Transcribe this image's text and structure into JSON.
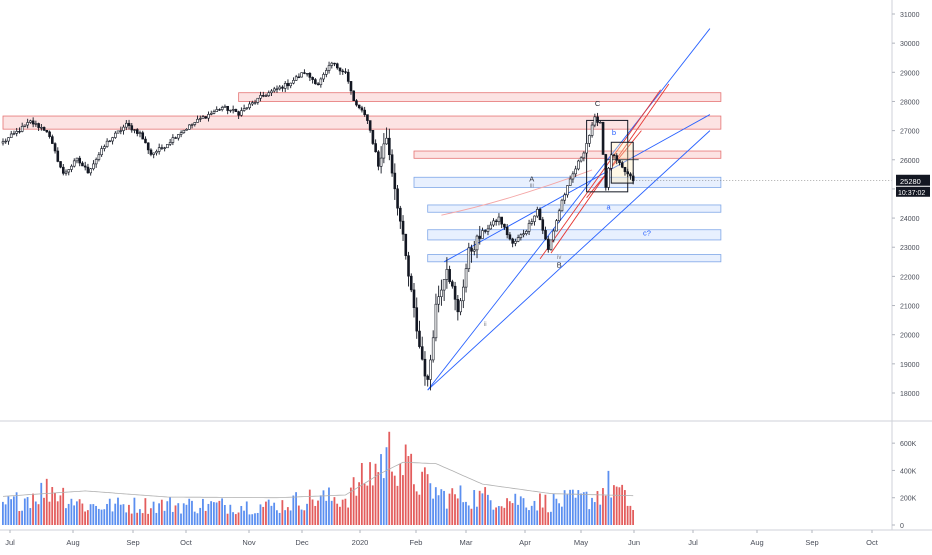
{
  "chart_data": {
    "type": "candlestick",
    "price_axis": {
      "ticks": [
        "31000",
        "30000",
        "29000",
        "28000",
        "27000",
        "26000",
        "25000",
        "24000",
        "23000",
        "22000",
        "21000",
        "20000",
        "19000",
        "18000"
      ],
      "range": [
        17200,
        31500
      ]
    },
    "last_price": {
      "value": "25280",
      "countdown": "10:37:02"
    },
    "volume_axis": {
      "ticks": [
        "600K",
        "400K",
        "200K",
        "0"
      ],
      "range": [
        0,
        760000
      ]
    },
    "time_axis": {
      "labels": [
        "Jul",
        "Aug",
        "Sep",
        "Oct",
        "Nov",
        "Dec",
        "2020",
        "Feb",
        "Mar",
        "Apr",
        "May",
        "Jun",
        "Jul",
        "Aug",
        "Sep",
        "Oct"
      ]
    },
    "anchors": [
      {
        "d": 0,
        "p": 26600
      },
      {
        "d": 10,
        "p": 27300
      },
      {
        "d": 16,
        "p": 27000
      },
      {
        "d": 22,
        "p": 25500
      },
      {
        "d": 27,
        "p": 26000
      },
      {
        "d": 31,
        "p": 25600
      },
      {
        "d": 38,
        "p": 26600
      },
      {
        "d": 45,
        "p": 27200
      },
      {
        "d": 50,
        "p": 26900
      },
      {
        "d": 54,
        "p": 26200
      },
      {
        "d": 58,
        "p": 26400
      },
      {
        "d": 64,
        "p": 26900
      },
      {
        "d": 72,
        "p": 27400
      },
      {
        "d": 80,
        "p": 27800
      },
      {
        "d": 86,
        "p": 27600
      },
      {
        "d": 95,
        "p": 28200
      },
      {
        "d": 104,
        "p": 28600
      },
      {
        "d": 110,
        "p": 29000
      },
      {
        "d": 115,
        "p": 28600
      },
      {
        "d": 120,
        "p": 29300
      },
      {
        "d": 125,
        "p": 29000
      },
      {
        "d": 128,
        "p": 28000
      },
      {
        "d": 133,
        "p": 27400
      },
      {
        "d": 137,
        "p": 25800
      },
      {
        "d": 140,
        "p": 26800
      },
      {
        "d": 144,
        "p": 24500
      },
      {
        "d": 148,
        "p": 22000
      },
      {
        "d": 152,
        "p": 19600
      },
      {
        "d": 155,
        "p": 18300
      },
      {
        "d": 158,
        "p": 21000
      },
      {
        "d": 162,
        "p": 22400
      },
      {
        "d": 166,
        "p": 20700
      },
      {
        "d": 170,
        "p": 22800
      },
      {
        "d": 175,
        "p": 23500
      },
      {
        "d": 181,
        "p": 24000
      },
      {
        "d": 186,
        "p": 23100
      },
      {
        "d": 191,
        "p": 23600
      },
      {
        "d": 195,
        "p": 24300
      },
      {
        "d": 199,
        "p": 22900
      },
      {
        "d": 204,
        "p": 24600
      },
      {
        "d": 208,
        "p": 25500
      },
      {
        "d": 212,
        "p": 26300
      },
      {
        "d": 216,
        "p": 27400
      },
      {
        "d": 218,
        "p": 27300
      },
      {
        "d": 220,
        "p": 25100
      },
      {
        "d": 222,
        "p": 26200
      },
      {
        "d": 226,
        "p": 25700
      },
      {
        "d": 230,
        "p": 25280
      }
    ],
    "volume_envelope": [
      {
        "d": 0,
        "v": 170000
      },
      {
        "d": 18,
        "v": 330000
      },
      {
        "d": 30,
        "v": 170000
      },
      {
        "d": 60,
        "v": 180000
      },
      {
        "d": 100,
        "v": 170000
      },
      {
        "d": 110,
        "v": 230000
      },
      {
        "d": 125,
        "v": 240000
      },
      {
        "d": 135,
        "v": 480000
      },
      {
        "d": 142,
        "v": 650000
      },
      {
        "d": 150,
        "v": 430000
      },
      {
        "d": 160,
        "v": 260000
      },
      {
        "d": 180,
        "v": 240000
      },
      {
        "d": 200,
        "v": 200000
      },
      {
        "d": 215,
        "v": 240000
      },
      {
        "d": 222,
        "v": 360000
      },
      {
        "d": 230,
        "v": 150000
      }
    ],
    "volume_ma": [
      {
        "d": 0,
        "v": 210000
      },
      {
        "d": 30,
        "v": 250000
      },
      {
        "d": 60,
        "v": 205000
      },
      {
        "d": 100,
        "v": 200000
      },
      {
        "d": 125,
        "v": 220000
      },
      {
        "d": 138,
        "v": 380000
      },
      {
        "d": 146,
        "v": 460000
      },
      {
        "d": 158,
        "v": 450000
      },
      {
        "d": 175,
        "v": 300000
      },
      {
        "d": 200,
        "v": 230000
      },
      {
        "d": 230,
        "v": 215000
      }
    ],
    "zones": [
      {
        "color": "red",
        "d1": 86,
        "d2": 262,
        "p1": 28000,
        "p2": 28300
      },
      {
        "color": "red",
        "d1": 0,
        "d2": 262,
        "p1": 27050,
        "p2": 27500
      },
      {
        "color": "red",
        "d1": 150,
        "d2": 262,
        "p1": 26050,
        "p2": 26300
      },
      {
        "color": "blue",
        "d1": 150,
        "d2": 262,
        "p1": 25050,
        "p2": 25400
      },
      {
        "color": "blue",
        "d1": 155,
        "d2": 262,
        "p1": 24200,
        "p2": 24450
      },
      {
        "color": "blue",
        "d1": 155,
        "d2": 262,
        "p1": 23250,
        "p2": 23600
      },
      {
        "color": "blue",
        "d1": 155,
        "d2": 262,
        "p1": 22500,
        "p2": 22750
      }
    ],
    "annotations": [
      {
        "text": "C",
        "d": 217,
        "p": 27850,
        "color": "#2a2e39"
      },
      {
        "text": "A",
        "d": 193,
        "p": 25250,
        "color": "#2a2e39"
      },
      {
        "text": "B",
        "d": 203,
        "p": 22300,
        "color": "#2a2e39"
      },
      {
        "text": "b",
        "d": 223,
        "p": 26850,
        "color": "#2962ff"
      },
      {
        "text": "a",
        "d": 221,
        "p": 24300,
        "color": "#2962ff"
      },
      {
        "text": "c?",
        "d": 235,
        "p": 23400,
        "color": "#2962ff"
      },
      {
        "text": "ii",
        "d": 176,
        "p": 20300,
        "color": "#787b86"
      },
      {
        "text": "iii",
        "d": 193,
        "p": 25050,
        "color": "#787b86"
      },
      {
        "text": "iv",
        "d": 203,
        "p": 22600,
        "color": "#787b86"
      }
    ]
  }
}
